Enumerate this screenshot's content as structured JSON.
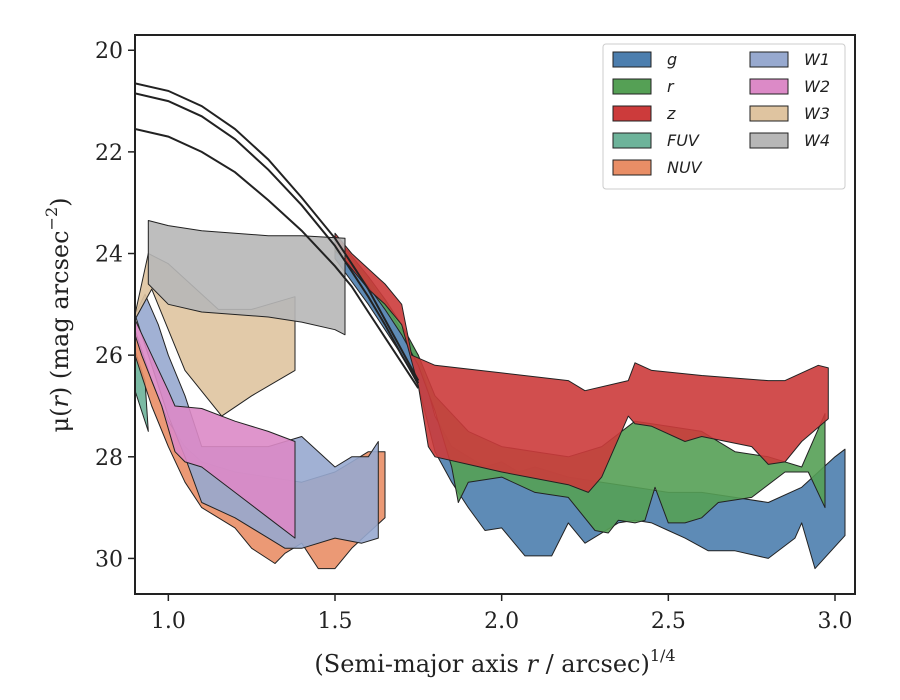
{
  "chart_data": {
    "type": "area",
    "xlabel_main": "(Semi-major axis ",
    "xlabel_var": "r",
    "xlabel_unit": " / arcsec)",
    "xlabel_exp": "1/4",
    "ylabel_pre": "μ(",
    "ylabel_var": "r",
    "ylabel_post": ") (mag arcsec",
    "ylabel_exp": "−2",
    "ylabel_close": ")",
    "xlim": [
      0.9,
      3.06
    ],
    "ylim": [
      30.7,
      19.7
    ],
    "y_inverted": true,
    "xticks": [
      1.0,
      1.5,
      2.0,
      2.5,
      3.0
    ],
    "xtick_labels": [
      "1.0",
      "1.5",
      "2.0",
      "2.5",
      "3.0"
    ],
    "yticks": [
      20,
      22,
      24,
      26,
      28,
      30
    ],
    "ytick_labels": [
      "20",
      "22",
      "24",
      "26",
      "28",
      "30"
    ],
    "grid": false,
    "legend_position": "top-right",
    "legend_columns": 2,
    "model_curves": [
      {
        "x": [
          0.9,
          1.0,
          1.1,
          1.2,
          1.3,
          1.4,
          1.5,
          1.55,
          1.6,
          1.65,
          1.7,
          1.75
        ],
        "y": [
          20.65,
          20.8,
          21.1,
          21.55,
          22.15,
          22.9,
          23.7,
          24.2,
          24.7,
          25.3,
          25.9,
          26.5
        ]
      },
      {
        "x": [
          0.9,
          1.0,
          1.1,
          1.2,
          1.3,
          1.4,
          1.5,
          1.55,
          1.6,
          1.65,
          1.7,
          1.75
        ],
        "y": [
          20.85,
          21.0,
          21.3,
          21.75,
          22.35,
          23.05,
          23.85,
          24.35,
          24.85,
          25.4,
          26.0,
          26.55
        ]
      },
      {
        "x": [
          0.9,
          1.0,
          1.1,
          1.2,
          1.3,
          1.4,
          1.5,
          1.55,
          1.6,
          1.65,
          1.7,
          1.75
        ],
        "y": [
          21.55,
          21.7,
          22.0,
          22.4,
          22.95,
          23.55,
          24.25,
          24.65,
          25.15,
          25.65,
          26.15,
          26.65
        ]
      }
    ],
    "series": [
      {
        "name": "g",
        "color": "#4c7eae",
        "row": 0,
        "col": 0,
        "upper": [
          [
            1.5,
            23.7
          ],
          [
            1.55,
            24.1
          ],
          [
            1.6,
            24.5
          ],
          [
            1.65,
            25.0
          ],
          [
            1.7,
            25.5
          ],
          [
            1.75,
            26.0
          ],
          [
            1.8,
            27.2
          ],
          [
            1.85,
            27.8
          ],
          [
            1.9,
            28.0
          ],
          [
            1.95,
            28.2
          ],
          [
            2.0,
            28.1
          ],
          [
            2.05,
            28.3
          ],
          [
            2.1,
            28.2
          ],
          [
            2.2,
            28.4
          ],
          [
            2.3,
            28.5
          ],
          [
            2.4,
            28.6
          ],
          [
            2.5,
            28.7
          ],
          [
            2.6,
            28.7
          ],
          [
            2.7,
            28.8
          ],
          [
            2.8,
            28.9
          ],
          [
            2.9,
            28.6
          ],
          [
            3.0,
            28.0
          ],
          [
            3.03,
            27.85
          ]
        ],
        "lower": [
          [
            3.03,
            29.55
          ],
          [
            2.94,
            30.2
          ],
          [
            2.9,
            29.3
          ],
          [
            2.88,
            29.6
          ],
          [
            2.8,
            30.0
          ],
          [
            2.7,
            29.85
          ],
          [
            2.62,
            29.85
          ],
          [
            2.55,
            29.6
          ],
          [
            2.5,
            29.45
          ],
          [
            2.45,
            29.3
          ],
          [
            2.4,
            29.25
          ],
          [
            2.35,
            29.3
          ],
          [
            2.25,
            29.7
          ],
          [
            2.2,
            29.3
          ],
          [
            2.15,
            29.95
          ],
          [
            2.07,
            29.95
          ],
          [
            2.0,
            29.4
          ],
          [
            1.95,
            29.45
          ],
          [
            1.9,
            29.0
          ],
          [
            1.85,
            28.5
          ],
          [
            1.8,
            27.9
          ],
          [
            1.75,
            26.6
          ],
          [
            1.7,
            26.0
          ],
          [
            1.65,
            25.5
          ],
          [
            1.6,
            25.0
          ],
          [
            1.55,
            24.55
          ],
          [
            1.5,
            24.1
          ]
        ]
      },
      {
        "name": "r",
        "color": "#55a055",
        "row": 1,
        "col": 0,
        "upper": [
          [
            1.5,
            23.65
          ],
          [
            1.55,
            24.05
          ],
          [
            1.6,
            24.45
          ],
          [
            1.65,
            24.9
          ],
          [
            1.7,
            25.4
          ],
          [
            1.75,
            26.0
          ],
          [
            1.8,
            26.8
          ],
          [
            1.9,
            27.5
          ],
          [
            2.0,
            27.8
          ],
          [
            2.1,
            27.9
          ],
          [
            2.2,
            28.0
          ],
          [
            2.3,
            27.8
          ],
          [
            2.4,
            27.3
          ],
          [
            2.5,
            27.4
          ],
          [
            2.6,
            27.5
          ],
          [
            2.7,
            27.9
          ],
          [
            2.8,
            28.0
          ],
          [
            2.9,
            28.2
          ],
          [
            2.97,
            27.15
          ]
        ],
        "lower": [
          [
            2.97,
            29.0
          ],
          [
            2.92,
            28.3
          ],
          [
            2.85,
            28.3
          ],
          [
            2.75,
            28.8
          ],
          [
            2.65,
            28.9
          ],
          [
            2.6,
            29.2
          ],
          [
            2.55,
            29.3
          ],
          [
            2.5,
            29.3
          ],
          [
            2.46,
            28.6
          ],
          [
            2.43,
            29.25
          ],
          [
            2.4,
            29.3
          ],
          [
            2.35,
            29.25
          ],
          [
            2.32,
            29.5
          ],
          [
            2.28,
            29.45
          ],
          [
            2.2,
            28.8
          ],
          [
            2.1,
            28.7
          ],
          [
            2.0,
            28.4
          ],
          [
            1.9,
            28.5
          ],
          [
            1.87,
            28.9
          ],
          [
            1.85,
            28.2
          ],
          [
            1.8,
            27.1
          ],
          [
            1.75,
            26.2
          ],
          [
            1.7,
            25.6
          ],
          [
            1.65,
            25.1
          ],
          [
            1.6,
            24.65
          ],
          [
            1.55,
            24.25
          ],
          [
            1.5,
            23.95
          ]
        ]
      },
      {
        "name": "z",
        "color": "#cc3b3b",
        "row": 2,
        "col": 0,
        "upper": [
          [
            1.5,
            23.6
          ],
          [
            1.55,
            24.0
          ],
          [
            1.6,
            24.3
          ],
          [
            1.65,
            24.6
          ],
          [
            1.7,
            25.0
          ],
          [
            1.73,
            26.0
          ],
          [
            1.8,
            26.2
          ],
          [
            2.0,
            26.35
          ],
          [
            2.2,
            26.5
          ],
          [
            2.25,
            26.7
          ],
          [
            2.38,
            26.5
          ],
          [
            2.4,
            26.15
          ],
          [
            2.45,
            26.3
          ],
          [
            2.6,
            26.4
          ],
          [
            2.8,
            26.5
          ],
          [
            2.85,
            26.5
          ],
          [
            2.95,
            26.2
          ],
          [
            2.98,
            26.25
          ]
        ],
        "lower": [
          [
            2.98,
            27.25
          ],
          [
            2.9,
            27.7
          ],
          [
            2.85,
            28.1
          ],
          [
            2.8,
            28.15
          ],
          [
            2.75,
            27.8
          ],
          [
            2.6,
            27.6
          ],
          [
            2.55,
            27.7
          ],
          [
            2.45,
            27.4
          ],
          [
            2.4,
            27.35
          ],
          [
            2.38,
            27.2
          ],
          [
            2.3,
            28.4
          ],
          [
            2.26,
            28.7
          ],
          [
            2.2,
            28.55
          ],
          [
            2.0,
            28.3
          ],
          [
            1.9,
            28.15
          ],
          [
            1.8,
            28.0
          ],
          [
            1.78,
            27.8
          ],
          [
            1.75,
            26.6
          ],
          [
            1.7,
            25.4
          ],
          [
            1.65,
            25.0
          ],
          [
            1.6,
            24.7
          ],
          [
            1.55,
            24.3
          ],
          [
            1.5,
            23.9
          ]
        ]
      },
      {
        "name": "FUV",
        "color": "#6db39a",
        "row": 3,
        "col": 0,
        "upper": [
          [
            0.9,
            25.9
          ],
          [
            0.93,
            26.5
          ],
          [
            0.94,
            27.5
          ]
        ],
        "lower": [
          [
            0.94,
            27.5
          ],
          [
            0.9,
            26.7
          ]
        ]
      },
      {
        "name": "NUV",
        "color": "#e98e66",
        "row": 4,
        "col": 0,
        "upper": [
          [
            0.9,
            25.5
          ],
          [
            0.95,
            26.5
          ],
          [
            1.0,
            27.3
          ],
          [
            1.05,
            27.8
          ],
          [
            1.1,
            28.1
          ],
          [
            1.2,
            28.3
          ],
          [
            1.3,
            28.4
          ],
          [
            1.4,
            28.5
          ],
          [
            1.5,
            28.3
          ],
          [
            1.55,
            28.1
          ],
          [
            1.6,
            27.9
          ],
          [
            1.65,
            27.9
          ]
        ],
        "lower": [
          [
            1.65,
            29.2
          ],
          [
            1.6,
            29.5
          ],
          [
            1.55,
            29.8
          ],
          [
            1.5,
            30.2
          ],
          [
            1.45,
            30.2
          ],
          [
            1.4,
            29.7
          ],
          [
            1.35,
            29.9
          ],
          [
            1.32,
            30.1
          ],
          [
            1.25,
            29.8
          ],
          [
            1.2,
            29.4
          ],
          [
            1.1,
            29.0
          ],
          [
            1.05,
            28.5
          ],
          [
            1.0,
            27.8
          ],
          [
            0.95,
            27.0
          ],
          [
            0.9,
            26.0
          ]
        ]
      },
      {
        "name": "W1",
        "color": "#97a9cf",
        "row": 0,
        "col": 1,
        "upper": [
          [
            0.93,
            24.8
          ],
          [
            0.97,
            25.4
          ],
          [
            1.0,
            26.0
          ],
          [
            1.05,
            26.8
          ],
          [
            1.1,
            27.8
          ],
          [
            1.2,
            27.8
          ],
          [
            1.3,
            27.8
          ],
          [
            1.4,
            27.6
          ],
          [
            1.5,
            28.2
          ],
          [
            1.55,
            28.0
          ],
          [
            1.6,
            28.0
          ],
          [
            1.63,
            27.7
          ]
        ],
        "lower": [
          [
            1.63,
            29.6
          ],
          [
            1.58,
            29.7
          ],
          [
            1.5,
            29.6
          ],
          [
            1.4,
            29.8
          ],
          [
            1.35,
            29.8
          ],
          [
            1.3,
            29.6
          ],
          [
            1.2,
            29.2
          ],
          [
            1.1,
            28.9
          ],
          [
            1.05,
            28.0
          ],
          [
            1.0,
            27.2
          ],
          [
            0.95,
            26.2
          ],
          [
            0.9,
            25.2
          ]
        ]
      },
      {
        "name": "W2",
        "color": "#dc8ac7",
        "row": 1,
        "col": 1,
        "upper": [
          [
            0.9,
            25.3
          ],
          [
            0.95,
            26.0
          ],
          [
            1.0,
            26.7
          ],
          [
            1.02,
            27.0
          ],
          [
            1.1,
            27.05
          ],
          [
            1.2,
            27.3
          ],
          [
            1.3,
            27.5
          ],
          [
            1.38,
            27.7
          ]
        ],
        "lower": [
          [
            1.38,
            29.6
          ],
          [
            1.3,
            29.2
          ],
          [
            1.2,
            28.7
          ],
          [
            1.1,
            28.2
          ],
          [
            1.05,
            28.1
          ],
          [
            1.02,
            27.9
          ],
          [
            0.98,
            27.0
          ],
          [
            0.92,
            26.0
          ],
          [
            0.9,
            25.6
          ]
        ]
      },
      {
        "name": "W3",
        "color": "#dfc4a0",
        "row": 2,
        "col": 1,
        "upper": [
          [
            0.9,
            25.2
          ],
          [
            0.94,
            24.0
          ],
          [
            1.0,
            24.2
          ],
          [
            1.15,
            25.1
          ],
          [
            1.25,
            25.1
          ],
          [
            1.38,
            24.85
          ]
        ],
        "lower": [
          [
            1.38,
            26.3
          ],
          [
            1.25,
            26.8
          ],
          [
            1.16,
            27.2
          ],
          [
            1.05,
            26.3
          ],
          [
            1.0,
            25.5
          ],
          [
            0.95,
            24.7
          ],
          [
            0.9,
            25.3
          ]
        ]
      },
      {
        "name": "W4",
        "color": "#b7b7b7",
        "row": 3,
        "col": 1,
        "upper": [
          [
            0.94,
            23.35
          ],
          [
            1.0,
            23.45
          ],
          [
            1.1,
            23.55
          ],
          [
            1.2,
            23.6
          ],
          [
            1.3,
            23.65
          ],
          [
            1.4,
            23.65
          ],
          [
            1.53,
            23.7
          ]
        ],
        "lower": [
          [
            1.53,
            25.6
          ],
          [
            1.5,
            25.5
          ],
          [
            1.4,
            25.35
          ],
          [
            1.3,
            25.25
          ],
          [
            1.2,
            25.2
          ],
          [
            1.1,
            25.15
          ],
          [
            1.0,
            25.0
          ],
          [
            0.94,
            24.6
          ]
        ]
      }
    ]
  }
}
